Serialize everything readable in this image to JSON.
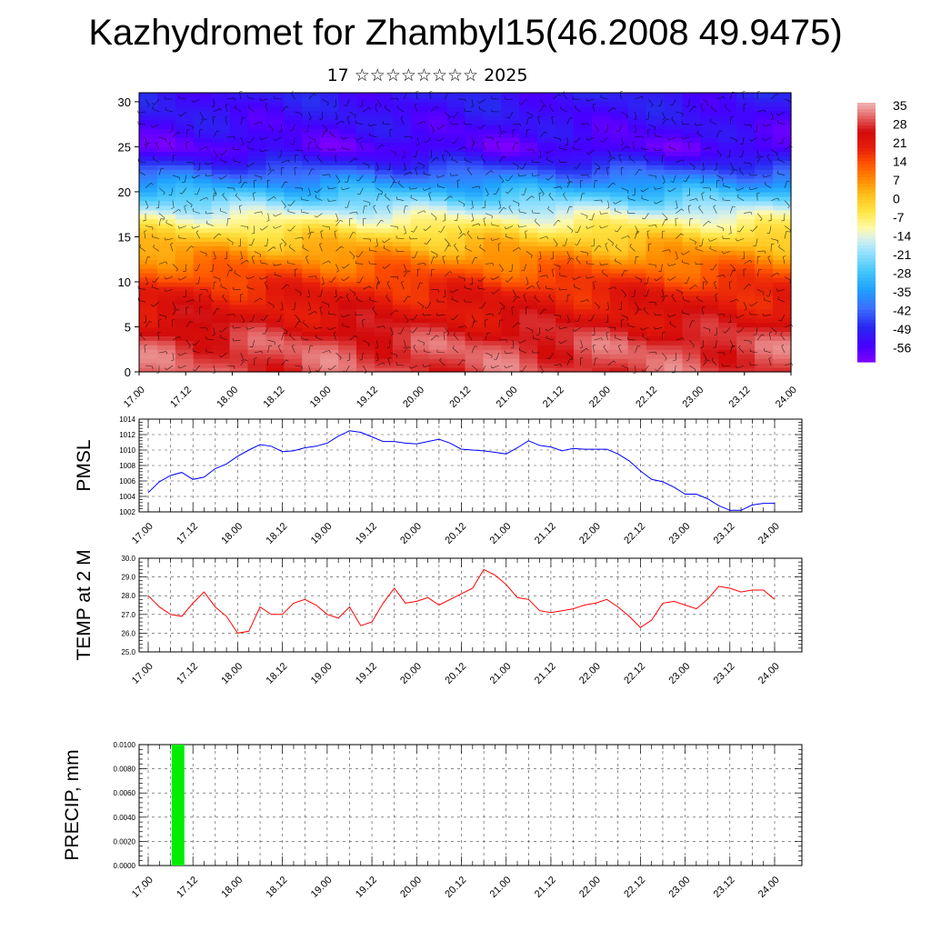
{
  "header": {
    "title": "Kazhydromet for Zhambyl15(46.2008 49.9475)",
    "subtitle": "17 ☆☆☆☆☆☆☆☆ 2025"
  },
  "time_ticks": [
    "17.00",
    "17.12",
    "18.00",
    "18.12",
    "19.00",
    "19.12",
    "20.00",
    "20.12",
    "21.00",
    "21.12",
    "22.00",
    "22.12",
    "23.00",
    "23.12",
    "24.00"
  ],
  "chart_data": [
    {
      "type": "heatmap",
      "title": "",
      "x_ticks": [
        "17.00",
        "17.12",
        "18.00",
        "18.12",
        "19.00",
        "19.12",
        "20.00",
        "20.12",
        "21.00",
        "21.12",
        "22.00",
        "22.12",
        "23.00",
        "23.12",
        "24.00"
      ],
      "y_ticks": [
        "0",
        "5",
        "10",
        "15",
        "20",
        "25",
        "30"
      ],
      "ylim": [
        0,
        31
      ],
      "xlim_hours": [
        0,
        168
      ],
      "temperature_profile": {
        "height": [
          0,
          3,
          6,
          9,
          11,
          13,
          15,
          17,
          18,
          19,
          20,
          21,
          22,
          23,
          24,
          25,
          26,
          28,
          31
        ],
        "value": [
          30,
          30,
          24,
          20,
          14,
          7,
          0,
          -10,
          -16,
          -22,
          -28,
          -34,
          -40,
          -46,
          -52,
          -56,
          -54,
          -52,
          -50
        ]
      },
      "overlay": "wind barbs",
      "colorbar": {
        "labels": [
          "35",
          "28",
          "21",
          "14",
          "7",
          "0",
          "-7",
          "-14",
          "-21",
          "-28",
          "-35",
          "-42",
          "-49",
          "-56"
        ],
        "values": [
          35,
          28,
          21,
          14,
          7,
          0,
          -7,
          -14,
          -21,
          -28,
          -35,
          -42,
          -49,
          -56
        ]
      }
    },
    {
      "type": "line",
      "ylabel": "PMSL",
      "color": "#0000ff",
      "ylim": [
        1002,
        1014
      ],
      "y_ticks": [
        "1002",
        "1004",
        "1006",
        "1008",
        "1010",
        "1012",
        "1014"
      ],
      "x_ticks": [
        "17.00",
        "17.12",
        "18.00",
        "18.12",
        "19.00",
        "19.12",
        "20.00",
        "20.12",
        "21.00",
        "21.12",
        "22.00",
        "22.12",
        "23.00",
        "23.12",
        "24.00"
      ],
      "x_hours": [
        0,
        3,
        6,
        9,
        12,
        15,
        18,
        21,
        24,
        27,
        30,
        33,
        36,
        39,
        42,
        45,
        48,
        51,
        54,
        57,
        60,
        63,
        66,
        69,
        72,
        75,
        78,
        81,
        84,
        87,
        90,
        93,
        96,
        99,
        102,
        105,
        108,
        111,
        114,
        117,
        120,
        123,
        126,
        129,
        132,
        135,
        138,
        141,
        144,
        147,
        150,
        153,
        156,
        159,
        162,
        165,
        168
      ],
      "values": [
        1004.5,
        1005.9,
        1006.7,
        1007.1,
        1006.2,
        1006.5,
        1007.6,
        1008.2,
        1009.2,
        1010.0,
        1010.7,
        1010.5,
        1009.8,
        1009.9,
        1010.3,
        1010.5,
        1010.9,
        1011.8,
        1012.5,
        1012.3,
        1011.7,
        1011.1,
        1011.1,
        1010.9,
        1010.8,
        1011.1,
        1011.4,
        1010.9,
        1010.1,
        1010.0,
        1009.9,
        1009.7,
        1009.5,
        1010.3,
        1011.2,
        1010.6,
        1010.4,
        1009.9,
        1010.2,
        1010.1,
        1010.1,
        1010.1,
        1009.5,
        1008.6,
        1007.3,
        1006.2,
        1005.9,
        1005.2,
        1004.3,
        1004.3,
        1003.7,
        1002.8,
        1002.2,
        1002.2,
        1002.9,
        1003.1,
        1003.1
      ]
    },
    {
      "type": "line",
      "ylabel": "TEMP at 2 M",
      "color": "#ff0000",
      "ylim": [
        25,
        30
      ],
      "y_ticks": [
        "25.0",
        "26.0",
        "27.0",
        "28.0",
        "29.0",
        "30.0"
      ],
      "x_ticks": [
        "17.00",
        "17.12",
        "18.00",
        "18.12",
        "19.00",
        "19.12",
        "20.00",
        "20.12",
        "21.00",
        "21.12",
        "22.00",
        "22.12",
        "23.00",
        "23.12",
        "24.00"
      ],
      "x_hours": [
        0,
        3,
        6,
        9,
        12,
        15,
        18,
        21,
        24,
        27,
        30,
        33,
        36,
        39,
        42,
        45,
        48,
        51,
        54,
        57,
        60,
        63,
        66,
        69,
        72,
        75,
        78,
        81,
        84,
        87,
        90,
        93,
        96,
        99,
        102,
        105,
        108,
        111,
        114,
        117,
        120,
        123,
        126,
        129,
        132,
        135,
        138,
        141,
        144,
        147,
        150,
        153,
        156,
        159,
        162,
        165,
        168
      ],
      "values": [
        28.0,
        27.4,
        27.0,
        26.9,
        27.6,
        28.2,
        27.4,
        26.9,
        26.0,
        26.1,
        27.4,
        27.0,
        27.0,
        27.6,
        27.8,
        27.5,
        27.0,
        26.8,
        27.4,
        26.4,
        26.6,
        27.6,
        28.4,
        27.6,
        27.7,
        27.9,
        27.5,
        27.8,
        28.1,
        28.4,
        29.4,
        29.1,
        28.6,
        27.9,
        27.8,
        27.2,
        27.1,
        27.2,
        27.3,
        27.5,
        27.6,
        27.8,
        27.4,
        26.9,
        26.3,
        26.7,
        27.6,
        27.7,
        27.5,
        27.3,
        27.8,
        28.5,
        28.4,
        28.2,
        28.3,
        28.3,
        27.8
      ]
    },
    {
      "type": "bar",
      "ylabel": "PRECIP, mm",
      "color": "#00ee00",
      "ylim": [
        0,
        0.01
      ],
      "y_ticks": [
        "0.0000",
        "0.0020",
        "0.0040",
        "0.0060",
        "0.0080",
        "0.0100"
      ],
      "x_ticks": [
        "17.00",
        "17.12",
        "18.00",
        "18.12",
        "19.00",
        "19.12",
        "20.00",
        "20.12",
        "21.00",
        "21.12",
        "22.00",
        "22.12",
        "23.00",
        "23.12",
        "24.00"
      ],
      "x_hours": [
        8
      ],
      "values": [
        0.01
      ]
    }
  ]
}
